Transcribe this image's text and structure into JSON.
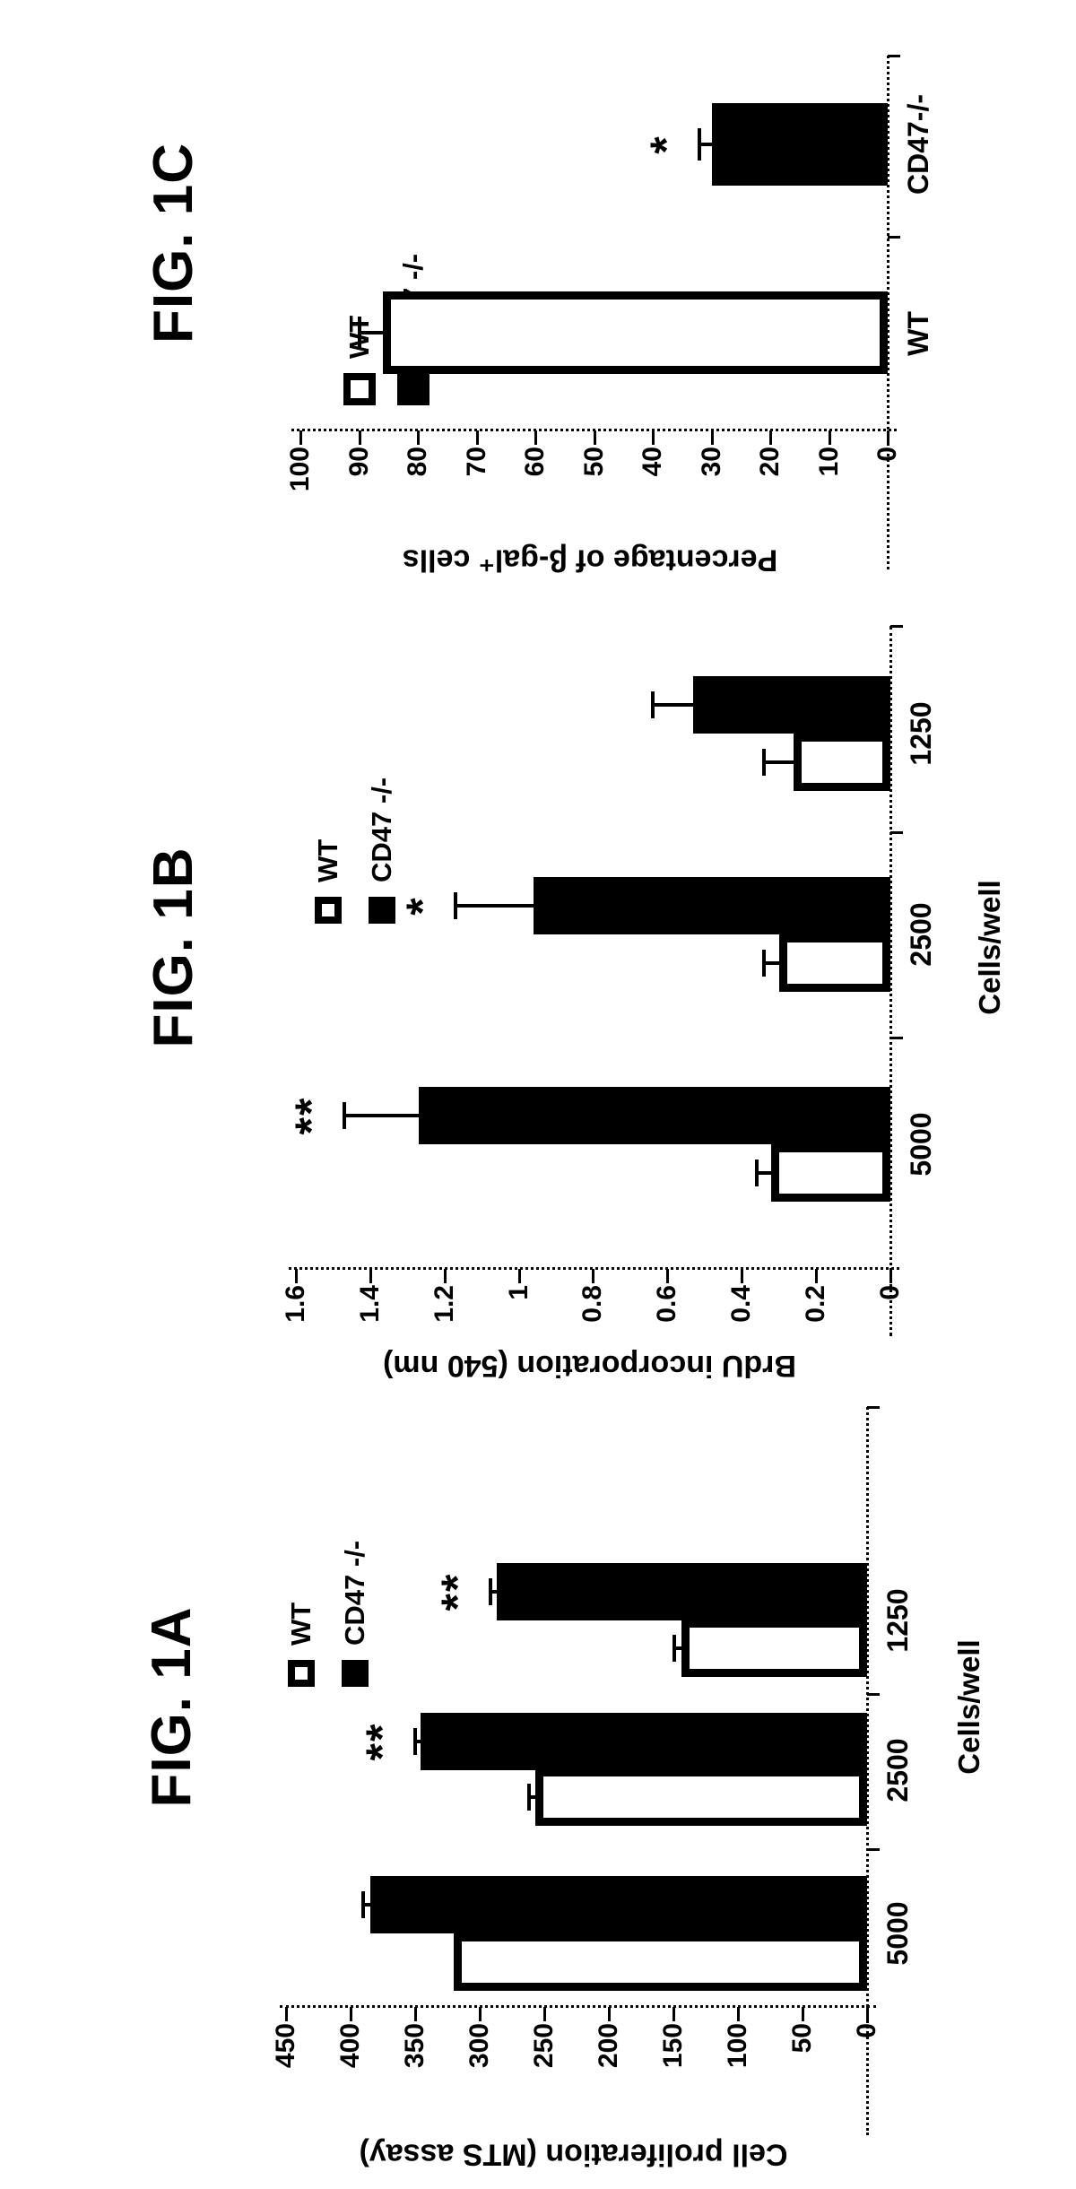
{
  "figure": {
    "description": "Patent-style figure page with three monochrome bar charts, each chart rotated 90 degrees counter-clockwise on the page",
    "ink_color": "#000000",
    "background_color": "#ffffff",
    "panels_order_top_to_bottom": [
      "FIG. 1C",
      "FIG. 1B",
      "FIG. 1A"
    ]
  },
  "panels": [
    {
      "title": "FIG. 1C",
      "legend": {
        "items": [
          {
            "label": "WT",
            "style": "open"
          },
          {
            "label": "CD47 -/-",
            "style": "solid"
          }
        ]
      }
    },
    {
      "title": "FIG. 1B",
      "legend": {
        "items": [
          {
            "label": "WT",
            "style": "open"
          },
          {
            "label": "CD47 -/-",
            "style": "solid"
          }
        ]
      }
    },
    {
      "title": "FIG. 1A",
      "legend": {
        "items": [
          {
            "label": "WT",
            "style": "open"
          },
          {
            "label": "CD47 -/-",
            "style": "solid"
          }
        ]
      }
    }
  ],
  "chart_data": [
    {
      "type": "bar",
      "title": "FIG. 1C",
      "orientation": "vertical bars; whole chart rotated 90deg CCW on page",
      "categories": [
        "WT",
        "CD47-/-"
      ],
      "series": [
        {
          "name": "WT",
          "style": "open",
          "values": [
            86,
            null
          ],
          "errors": [
            4,
            null
          ],
          "annotations": [
            null,
            null
          ]
        },
        {
          "name": "CD47 -/-",
          "style": "solid",
          "values": [
            null,
            30
          ],
          "errors": [
            null,
            2
          ],
          "annotations": [
            null,
            "*"
          ]
        }
      ],
      "ylabel": "Percentage of β-gal⁺ cells",
      "xlabel": "",
      "ylim": [
        0,
        100
      ],
      "ytick_values": [
        0,
        10,
        20,
        30,
        40,
        50,
        60,
        70,
        80,
        90,
        100
      ],
      "ytick_labels": [
        "0",
        "10",
        "20",
        "30",
        "40",
        "50",
        "60",
        "70",
        "80",
        "90",
        "100"
      ],
      "axis_style": "dotted",
      "grid": "off",
      "legend_position": "upper-left-inside-plot"
    },
    {
      "type": "bar",
      "title": "FIG. 1B",
      "orientation": "vertical grouped bars; whole chart rotated 90deg CCW on page",
      "categories": [
        "5000",
        "2500",
        "1250"
      ],
      "series": [
        {
          "name": "WT",
          "style": "open",
          "values": [
            0.32,
            0.3,
            0.26
          ],
          "errors": [
            0.04,
            0.04,
            0.08
          ],
          "annotations": [
            null,
            null,
            null
          ]
        },
        {
          "name": "CD47 -/-",
          "style": "solid",
          "values": [
            1.27,
            0.96,
            0.53
          ],
          "errors": [
            0.2,
            0.21,
            0.11
          ],
          "annotations": [
            "**",
            "*",
            null
          ]
        }
      ],
      "ylabel": "BrdU incorporation (540 nm)",
      "xlabel": "Cells/well",
      "ylim": [
        0,
        1.6
      ],
      "ytick_values": [
        0,
        0.2,
        0.4,
        0.6,
        0.8,
        1,
        1.2,
        1.4,
        1.6
      ],
      "ytick_labels": [
        "0",
        "0.2",
        "0.4",
        "0.6",
        "0.8",
        "1",
        "1.2",
        "1.4",
        "1.6"
      ],
      "axis_style": "dotted",
      "grid": "off",
      "legend_position": "upper-middle-inside-plot"
    },
    {
      "type": "bar",
      "title": "FIG. 1A",
      "orientation": "vertical grouped bars; whole chart rotated 90deg CCW on page",
      "categories": [
        "5000",
        "2500",
        "1250"
      ],
      "series": [
        {
          "name": "WT",
          "style": "open",
          "values": [
            320,
            257,
            144
          ],
          "errors": [
            0,
            5,
            5
          ],
          "annotations": [
            null,
            null,
            null
          ]
        },
        {
          "name": "CD47 -/-",
          "style": "solid",
          "values": [
            385,
            346,
            287
          ],
          "errors": [
            5,
            4,
            5
          ],
          "annotations": [
            null,
            "**",
            "**"
          ]
        }
      ],
      "ylabel": "Cell proliferation (MTS assay)",
      "xlabel": "Cells/well",
      "ylim": [
        0,
        450
      ],
      "ytick_values": [
        0,
        50,
        100,
        150,
        200,
        250,
        300,
        350,
        400,
        450
      ],
      "ytick_labels": [
        "0",
        "50",
        "100",
        "150",
        "200",
        "250",
        "300",
        "350",
        "400",
        "450"
      ],
      "axis_style": "dotted",
      "grid": "off",
      "legend_position": "upper-middle-inside-plot"
    }
  ]
}
